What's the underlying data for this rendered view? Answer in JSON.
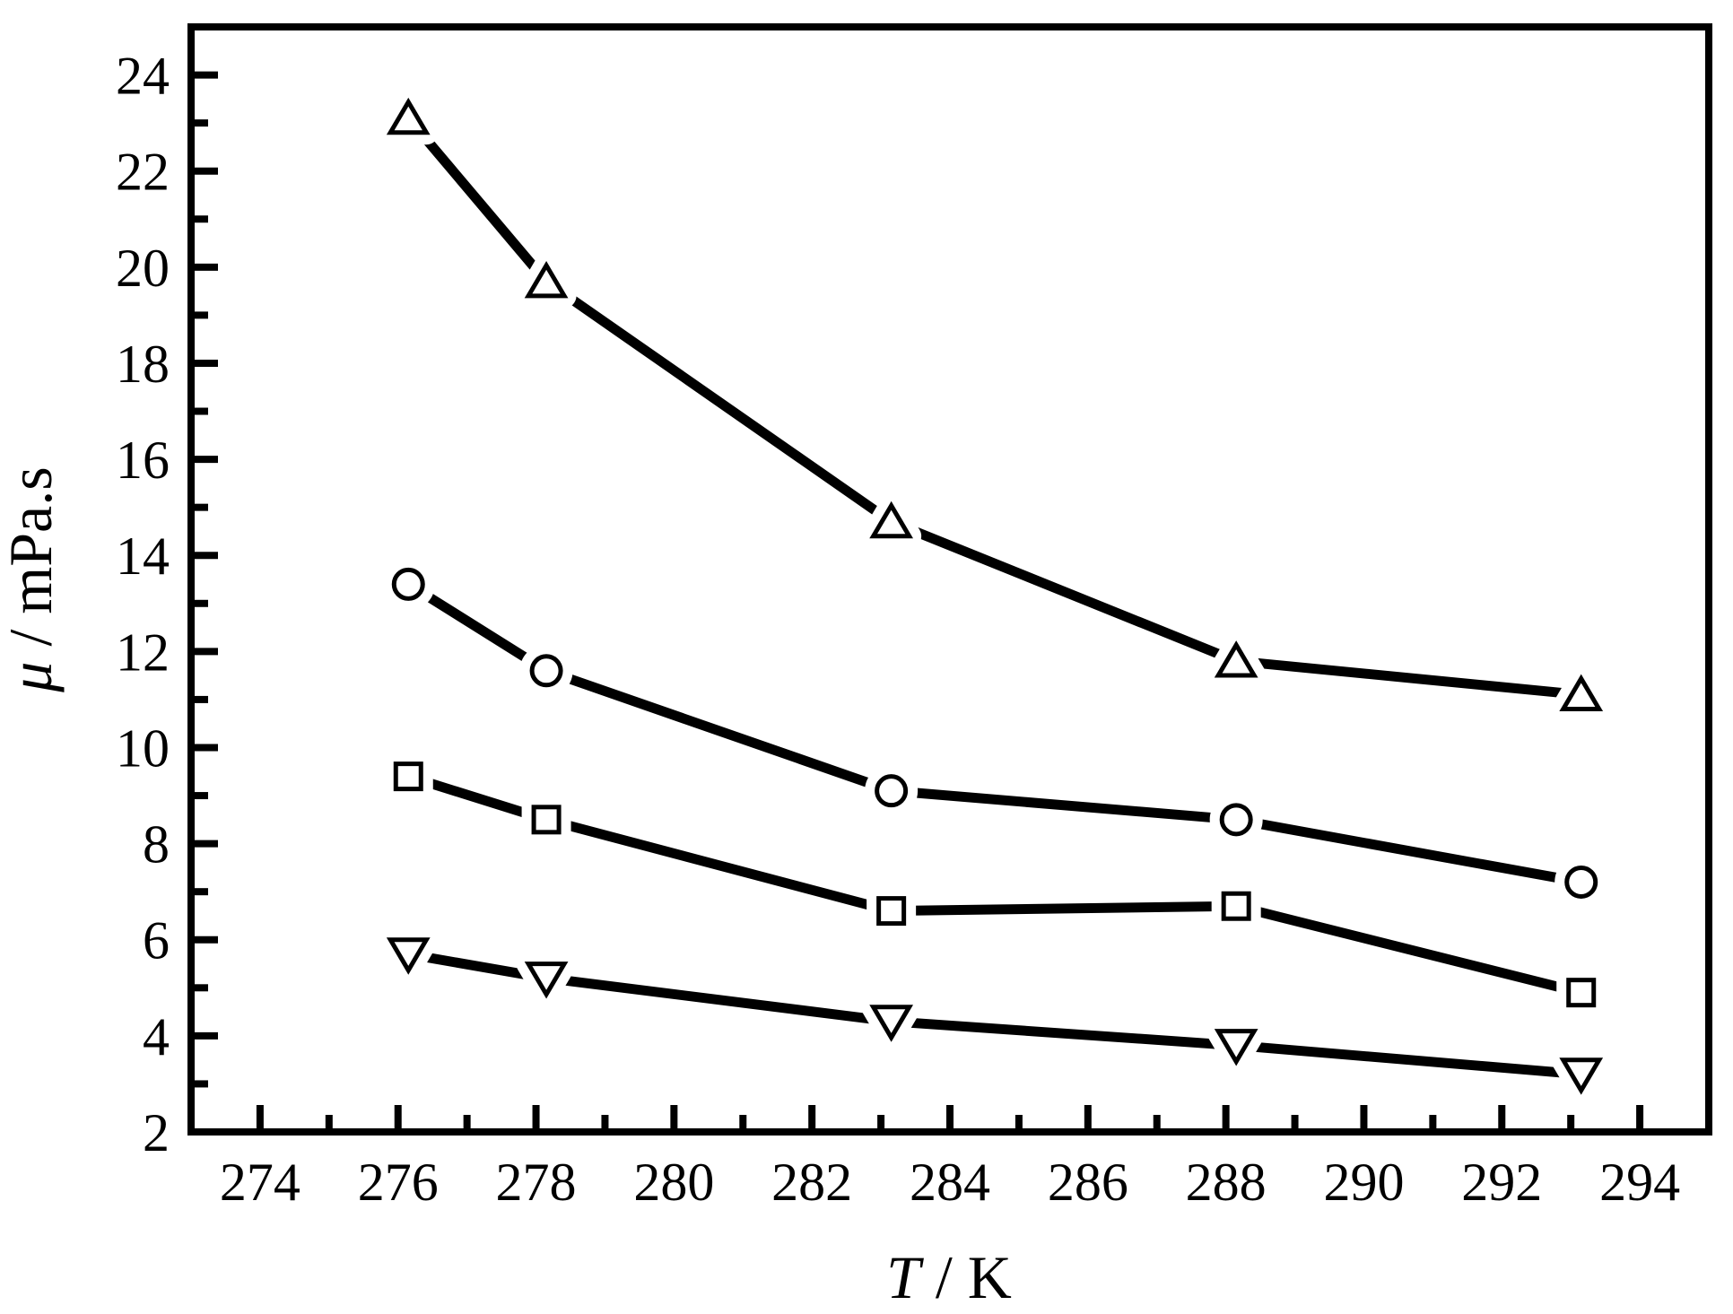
{
  "chart_data": {
    "type": "line",
    "title": "",
    "xlabel": "T / K",
    "ylabel": "μ / mPa.s",
    "xlabel_parts": {
      "italic": "T",
      "rest": " / K"
    },
    "ylabel_parts": {
      "italic": "μ",
      "rest": " / mPa.s"
    },
    "xlim": [
      273,
      295
    ],
    "ylim": [
      2,
      25
    ],
    "grid": false,
    "legend": "none",
    "x_major_ticks": [
      274,
      276,
      278,
      280,
      282,
      284,
      286,
      288,
      290,
      292,
      294
    ],
    "x_minor_ticks": [
      275,
      277,
      279,
      281,
      283,
      285,
      287,
      289,
      291,
      293
    ],
    "y_major_ticks": [
      2,
      4,
      6,
      8,
      10,
      12,
      14,
      16,
      18,
      20,
      22,
      24
    ],
    "y_minor_ticks": [
      3,
      5,
      7,
      9,
      11,
      13,
      15,
      17,
      19,
      21,
      23
    ],
    "x": [
      276.15,
      278.15,
      283.15,
      288.15,
      293.15
    ],
    "series": [
      {
        "name": "triangle-up-series",
        "marker": "triangle-up",
        "values": [
          23.1,
          19.7,
          14.7,
          11.8,
          11.1
        ]
      },
      {
        "name": "circle-series",
        "marker": "circle",
        "values": [
          13.4,
          11.6,
          9.1,
          8.5,
          7.2
        ]
      },
      {
        "name": "square-series",
        "marker": "square",
        "values": [
          9.4,
          8.5,
          6.6,
          6.7,
          4.9
        ]
      },
      {
        "name": "triangle-down-series",
        "marker": "triangle-down",
        "values": [
          5.7,
          5.2,
          4.3,
          3.8,
          3.2
        ]
      }
    ],
    "colors": {
      "line": "#000000",
      "marker_fill": "#ffffff",
      "background": "#ffffff"
    }
  }
}
